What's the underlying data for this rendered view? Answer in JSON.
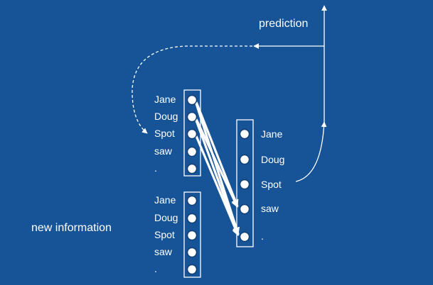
{
  "colors": {
    "background": "#165497",
    "foreground": "#ffffff"
  },
  "labels": {
    "prediction": "prediction",
    "new_information": "new information"
  },
  "column_top": [
    "Jane",
    "Doug",
    "Spot",
    "saw",
    "."
  ],
  "column_bottom": [
    "Jane",
    "Doug",
    "Spot",
    "saw",
    "."
  ],
  "column_right": [
    "Jane",
    "Doug",
    "Spot",
    "saw",
    "."
  ]
}
